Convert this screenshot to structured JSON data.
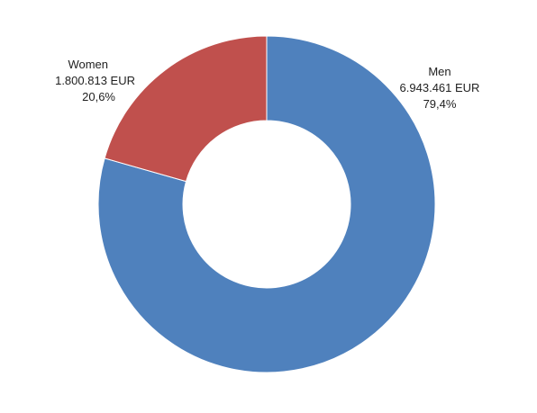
{
  "chart_data": {
    "type": "pie",
    "variant": "donut",
    "title": "",
    "legend": "none",
    "slices": [
      {
        "name": "Men",
        "value": 6943461,
        "value_label": "6.943.461 EUR",
        "percent": 79.4,
        "percent_label": "79,4%",
        "color": "#4F81BD"
      },
      {
        "name": "Women",
        "value": 1800813,
        "value_label": "1.800.813 EUR",
        "percent": 20.6,
        "percent_label": "20,6%",
        "color": "#C0504D"
      }
    ],
    "currency": "EUR"
  }
}
